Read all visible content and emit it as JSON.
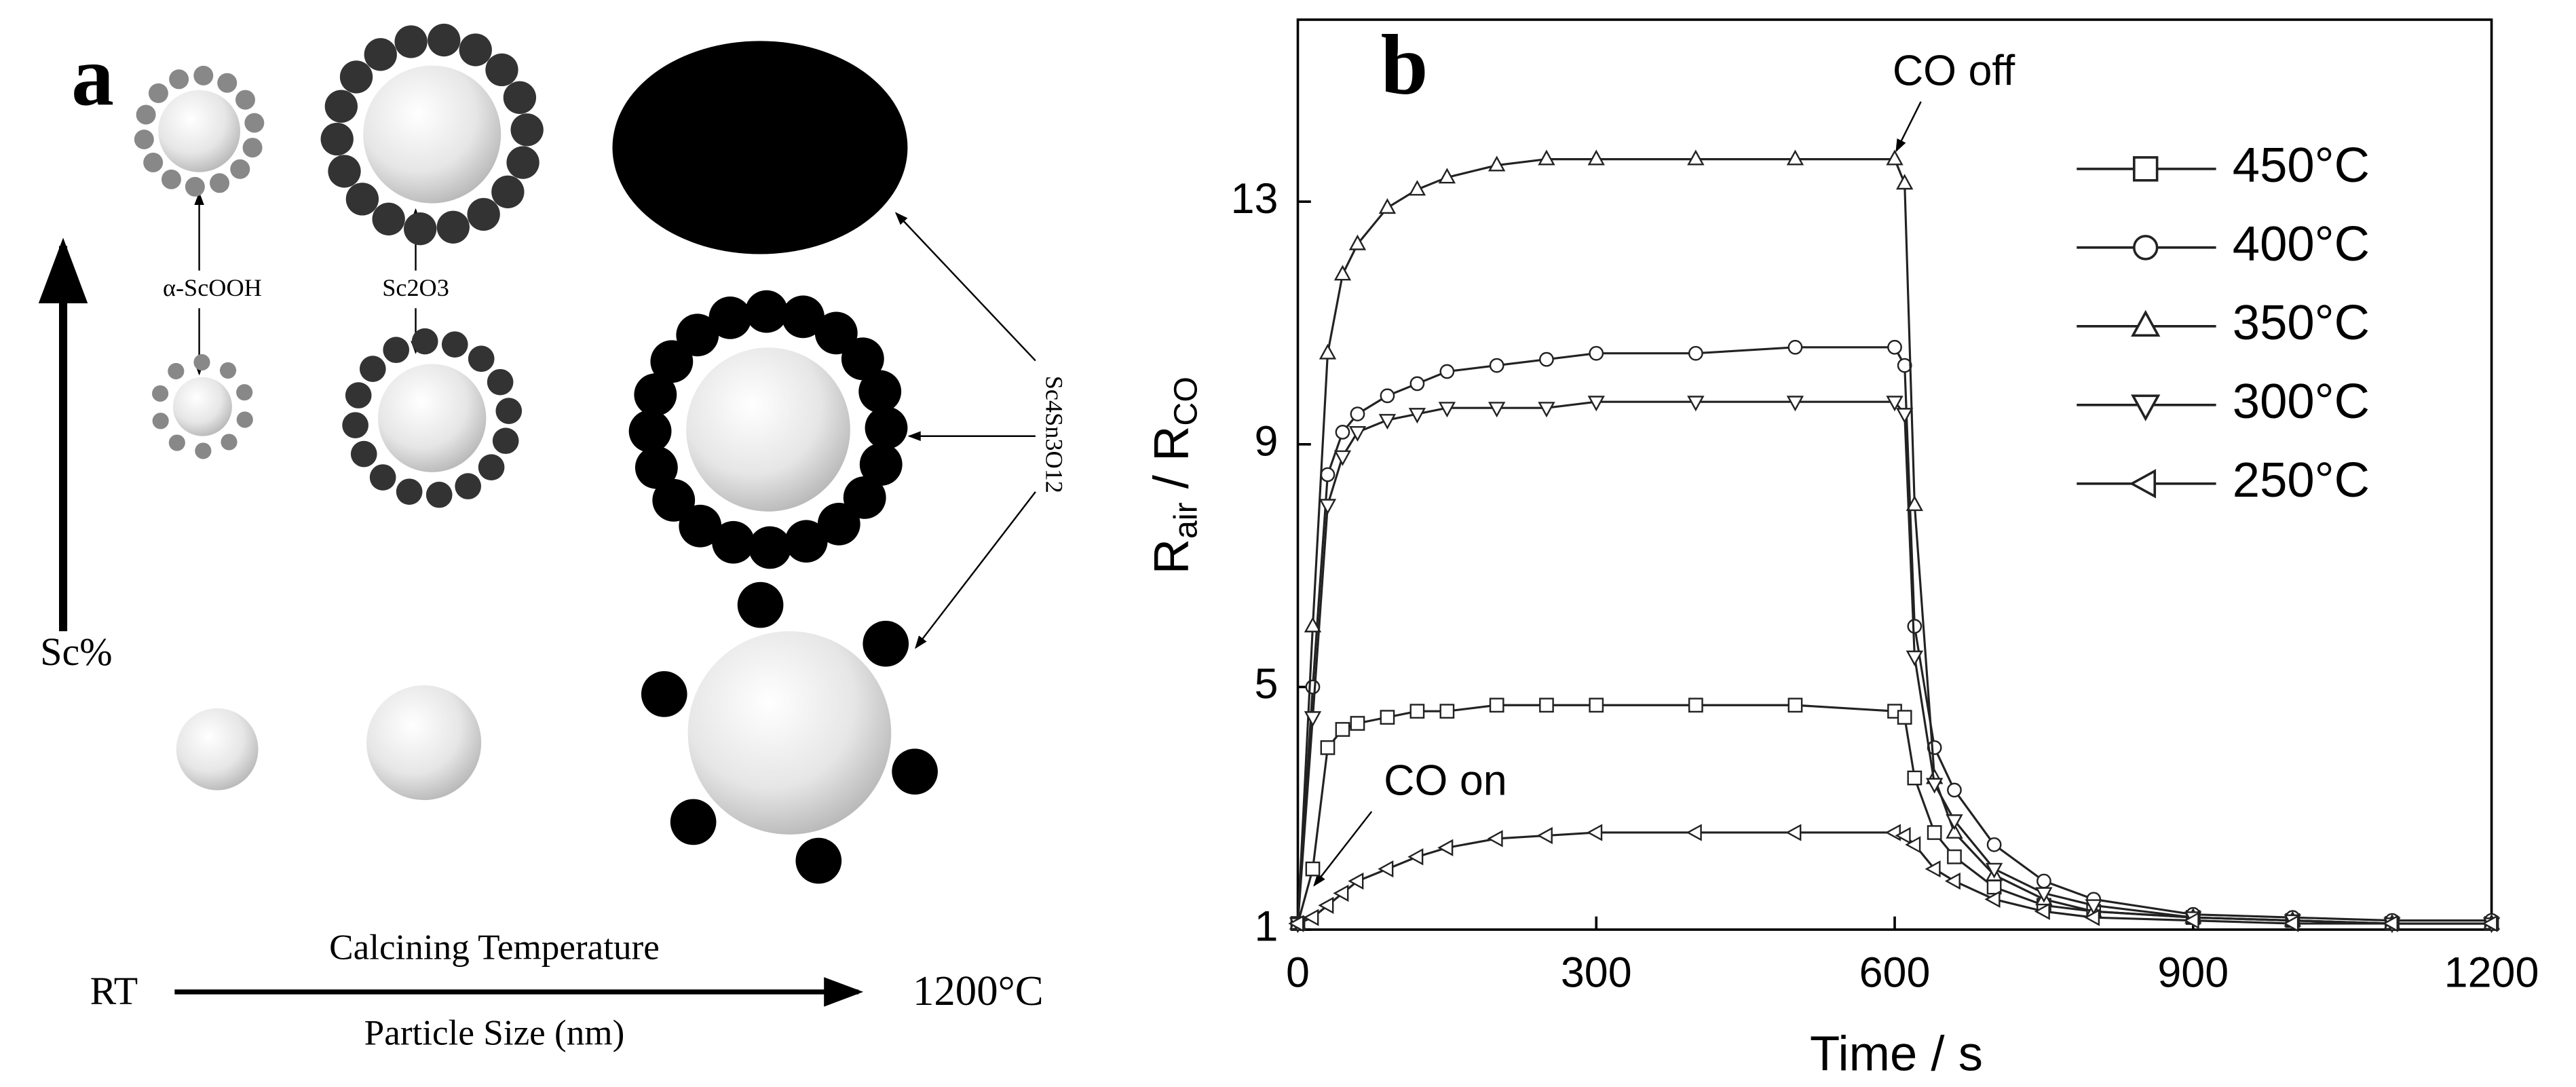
{
  "panel_a": {
    "label": "a",
    "top_left": "α-ScOOH",
    "top_mid": "Sc2O3",
    "right": "Sc4Sn3O12",
    "axis_up": "Sc%",
    "start": "RT",
    "arrow_top": "Calcining Temperature",
    "arrow_bottom": "Particle Size (nm)",
    "end": "1200°C"
  },
  "chart_data": {
    "type": "line",
    "panel_label": "b",
    "xlabel": "Time / s",
    "ylabel": {
      "r1": "R",
      "sub1": "air",
      "r2": " / R",
      "sub2": "CO"
    },
    "annotations": {
      "co_off": "CO off",
      "co_on": "CO on"
    },
    "x": [
      0,
      15,
      30,
      45,
      60,
      90,
      120,
      150,
      200,
      250,
      300,
      400,
      500,
      600,
      610,
      620,
      640,
      660,
      700,
      750,
      800,
      900,
      1000,
      1100,
      1200
    ],
    "series": [
      {
        "name": "450°C",
        "color": "#222",
        "marker": "square",
        "values": [
          1.1,
          2.0,
          4.0,
          4.3,
          4.4,
          4.5,
          4.6,
          4.6,
          4.7,
          4.7,
          4.7,
          4.7,
          4.7,
          4.6,
          4.5,
          3.5,
          2.6,
          2.2,
          1.7,
          1.4,
          1.3,
          1.2,
          1.15,
          1.1,
          1.1
        ]
      },
      {
        "name": "400°C",
        "color": "#222",
        "marker": "circle",
        "values": [
          1.1,
          5,
          8.5,
          9.2,
          9.5,
          9.8,
          10.0,
          10.2,
          10.3,
          10.4,
          10.5,
          10.5,
          10.6,
          10.6,
          10.3,
          6,
          4,
          3.3,
          2.4,
          1.8,
          1.5,
          1.25,
          1.2,
          1.15,
          1.15
        ]
      },
      {
        "name": "350°C",
        "color": "#222",
        "marker": "triangle-up",
        "values": [
          1.1,
          6,
          10.5,
          11.8,
          12.3,
          12.9,
          13.2,
          13.4,
          13.6,
          13.7,
          13.7,
          13.7,
          13.7,
          13.7,
          13.3,
          8,
          3.5,
          2.6,
          1.9,
          1.5,
          1.3,
          1.2,
          1.15,
          1.1,
          1.1
        ]
      },
      {
        "name": "300°C",
        "color": "#222",
        "marker": "triangle-down",
        "values": [
          1.1,
          4.5,
          8.0,
          8.8,
          9.2,
          9.4,
          9.5,
          9.6,
          9.6,
          9.6,
          9.7,
          9.7,
          9.7,
          9.7,
          9.5,
          5.5,
          3.4,
          2.8,
          2.0,
          1.6,
          1.4,
          1.2,
          1.15,
          1.1,
          1.1
        ]
      },
      {
        "name": "250°C",
        "color": "#222",
        "marker": "triangle-left",
        "values": [
          1.1,
          1.2,
          1.4,
          1.6,
          1.8,
          2.0,
          2.2,
          2.35,
          2.5,
          2.55,
          2.6,
          2.6,
          2.6,
          2.6,
          2.55,
          2.4,
          2.0,
          1.8,
          1.5,
          1.3,
          1.2,
          1.15,
          1.1,
          1.1,
          1.1
        ]
      }
    ],
    "xlim": [
      0,
      1200
    ],
    "xticks": [
      0,
      300,
      600,
      900,
      1200
    ],
    "ylim": [
      1,
      16
    ],
    "yticks": [
      1,
      5,
      9,
      13
    ],
    "legend": "upper right"
  }
}
